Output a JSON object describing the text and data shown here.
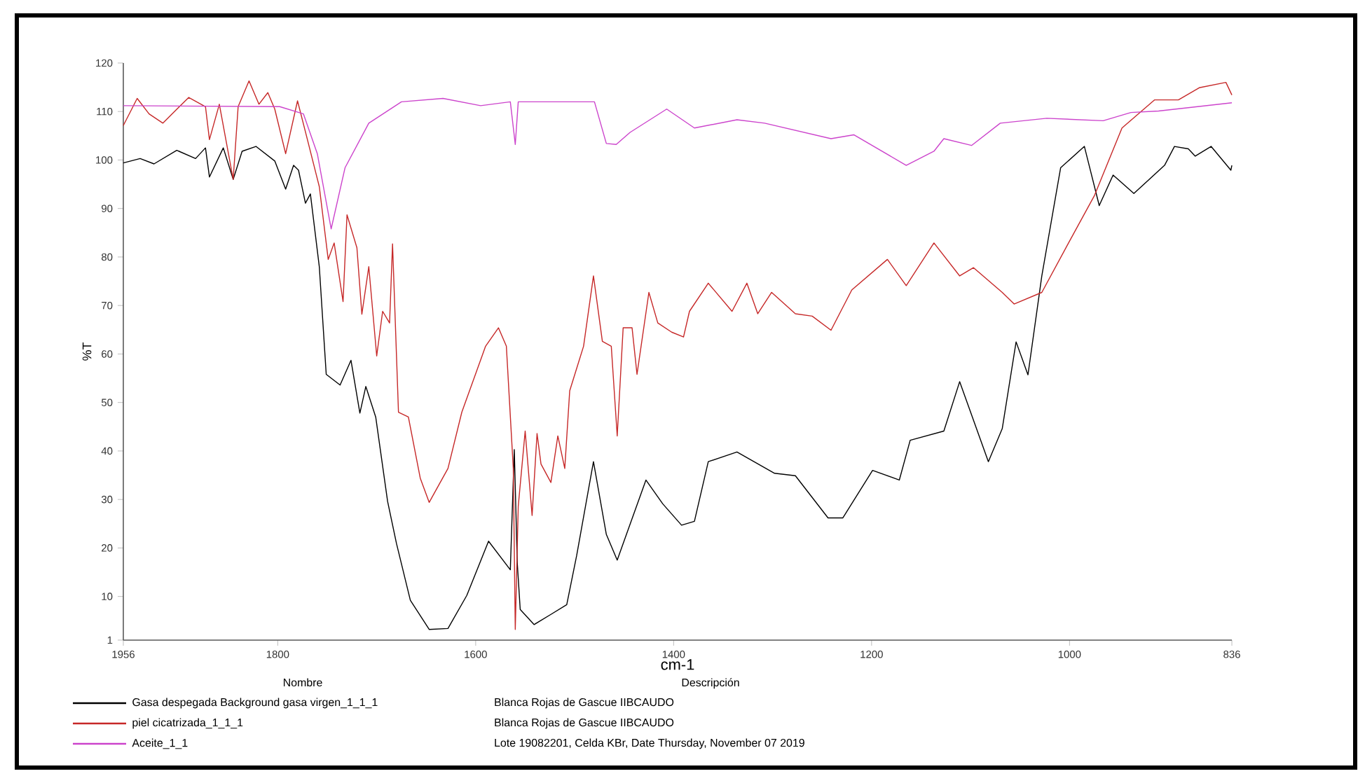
{
  "chart_data": {
    "type": "line",
    "xlabel": "cm-1",
    "ylabel": "%T",
    "legend_title": "Nombre",
    "legend": "bottom",
    "grid": false,
    "marker": "none",
    "line_style": "solid",
    "xlim": [
      1956,
      836
    ],
    "xticks": [
      1956,
      1800,
      1600,
      1400,
      1200,
      1000,
      836
    ],
    "ylim": [
      1,
      120
    ],
    "yticks": [
      1,
      10,
      20,
      30,
      40,
      50,
      60,
      70,
      80,
      90,
      100,
      110,
      120
    ],
    "annotations": [
      "Descripción",
      "Blanca Rojas de Gascue IIBCAUDO",
      "Blanca Rojas de Gascue IIBCAUDO",
      "Lote 19082201, Celda KBr,  Date Thursday, November 07 2019"
    ],
    "series": [
      {
        "name": "Gasa despegada Background gasa virgen_1_1_1",
        "color": "#000000",
        "x": [
          1956,
          1939,
          1925,
          1902,
          1883,
          1873,
          1869,
          1855,
          1845,
          1836,
          1822,
          1803,
          1792,
          1784,
          1779,
          1772,
          1767,
          1758,
          1751,
          1737,
          1726,
          1717,
          1711,
          1701,
          1689,
          1680,
          1666,
          1647,
          1628,
          1609,
          1587,
          1565,
          1561,
          1558,
          1555,
          1541,
          1524,
          1508,
          1498,
          1481,
          1468,
          1457,
          1428,
          1411,
          1392,
          1379,
          1365,
          1336,
          1298,
          1277,
          1244,
          1229,
          1199,
          1172,
          1161,
          1127,
          1111,
          1082,
          1068,
          1054,
          1042,
          1028,
          1009,
          985,
          970,
          956,
          935,
          904,
          894,
          880,
          873,
          857,
          837,
          836
        ],
        "values": [
          99.4,
          100.3,
          99.2,
          102,
          100.3,
          102.5,
          96.5,
          102.5,
          96,
          101.8,
          102.8,
          99.8,
          94,
          98.9,
          97.9,
          91.1,
          93,
          78,
          55.8,
          53.6,
          58.7,
          47.8,
          53.3,
          47,
          29.6,
          20.9,
          9.2,
          3.2,
          3.4,
          10.2,
          21.4,
          15.5,
          40.3,
          17,
          7.3,
          4.2,
          6.3,
          8.3,
          18.4,
          37.8,
          22.8,
          17.5,
          34,
          29.1,
          24.7,
          25.5,
          37.8,
          39.8,
          35.4,
          34.9,
          26.2,
          26.2,
          36,
          34,
          42.2,
          44.1,
          54.3,
          37.8,
          44.6,
          62.5,
          55.7,
          76.1,
          98.4,
          102.8,
          90.6,
          96.9,
          93.1,
          98.9,
          102.8,
          102.3,
          100.8,
          102.8,
          97.9,
          98.9
        ]
      },
      {
        "name": "piel cicatrizada_1_1_1",
        "color": "#c62828",
        "x": [
          1956,
          1942,
          1930,
          1916,
          1890,
          1873,
          1869,
          1859,
          1845,
          1840,
          1829,
          1819,
          1810,
          1803,
          1792,
          1780,
          1770,
          1758,
          1749,
          1743,
          1734,
          1730,
          1720,
          1715,
          1708,
          1700,
          1694,
          1687,
          1684,
          1678,
          1668,
          1656,
          1647,
          1628,
          1614,
          1590,
          1577,
          1569,
          1562,
          1560,
          1557,
          1550,
          1543,
          1538,
          1534,
          1524,
          1517,
          1510,
          1505,
          1491,
          1481,
          1472,
          1463,
          1457,
          1451,
          1442,
          1437,
          1425,
          1416,
          1402,
          1390,
          1384,
          1365,
          1341,
          1326,
          1315,
          1301,
          1277,
          1260,
          1241,
          1220,
          1184,
          1165,
          1137,
          1111,
          1097,
          1068,
          1056,
          1028,
          1001,
          975,
          947,
          914,
          890,
          869,
          842,
          836
        ],
        "values": [
          107.1,
          112.7,
          109.5,
          107.6,
          112.9,
          111,
          104.2,
          111.5,
          96,
          111,
          116.3,
          111.5,
          113.9,
          110.5,
          101.3,
          112.2,
          104.2,
          94.5,
          79.5,
          82.9,
          70.8,
          88.7,
          81.9,
          68.2,
          78,
          59.6,
          68.8,
          66.4,
          82.7,
          48,
          47,
          34.4,
          29.4,
          36.4,
          48,
          61.6,
          65.4,
          61.6,
          36.4,
          3.2,
          28.6,
          44.1,
          26.7,
          43.6,
          37.3,
          33.5,
          43.1,
          36.4,
          52.4,
          61.6,
          76.1,
          62.6,
          61.6,
          43.1,
          65.4,
          65.4,
          55.8,
          72.7,
          66.4,
          64.5,
          63.5,
          68.8,
          74.6,
          68.8,
          74.6,
          68.3,
          72.7,
          68.3,
          67.8,
          64.9,
          73.2,
          79.5,
          74.1,
          82.9,
          76.1,
          77.8,
          72.7,
          70.3,
          72.7,
          82.9,
          92.6,
          106.6,
          112.4,
          112.4,
          114.9,
          116,
          113.4
        ]
      },
      {
        "name": "Aceite_1_1",
        "color": "#cc44cc",
        "x": [
          1956,
          1798,
          1774,
          1760,
          1746,
          1732,
          1708,
          1675,
          1633,
          1595,
          1565,
          1560,
          1557,
          1480,
          1468,
          1458,
          1444,
          1407,
          1379,
          1336,
          1308,
          1241,
          1218,
          1165,
          1137,
          1127,
          1099,
          1070,
          1023,
          966,
          938,
          910,
          836
        ],
        "values": [
          111.2,
          111,
          109.5,
          101.3,
          85.8,
          98.4,
          107.6,
          112,
          112.7,
          111.2,
          112,
          103.2,
          112,
          112,
          103.4,
          103.2,
          105.7,
          110.5,
          106.6,
          108.3,
          107.6,
          104.4,
          105.2,
          98.9,
          101.8,
          104.4,
          103,
          107.6,
          108.6,
          108.1,
          109.8,
          110.1,
          111.8
        ]
      }
    ]
  }
}
